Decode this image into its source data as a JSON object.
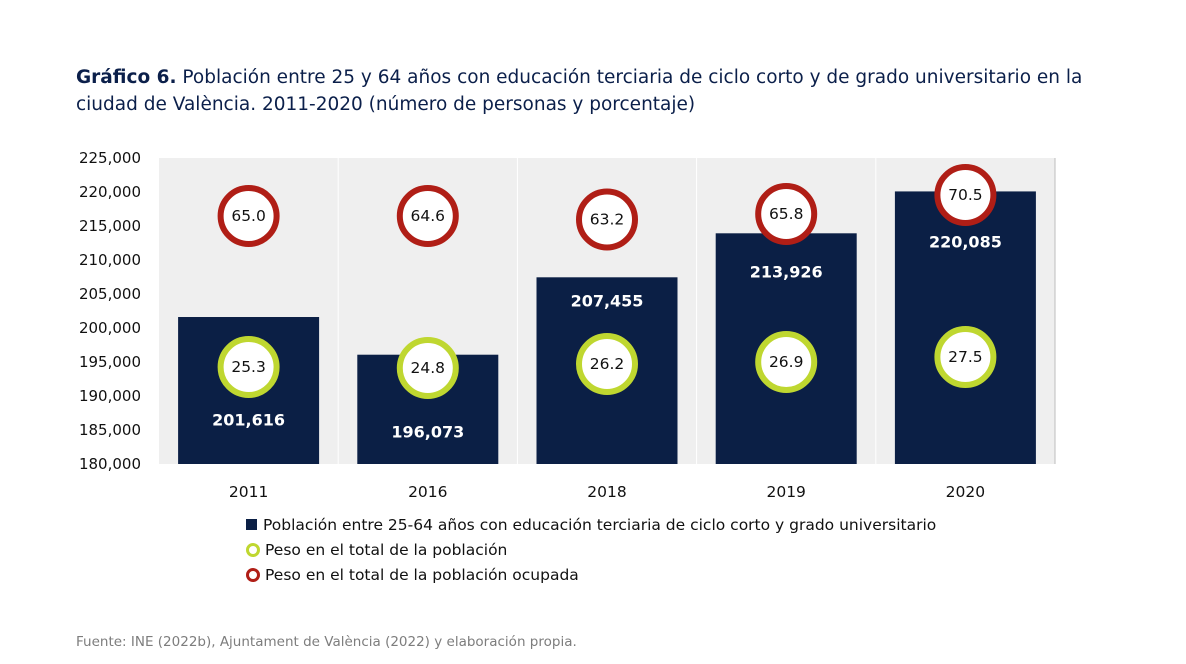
{
  "title": {
    "lead": "Gráfico 6.",
    "text": " Población entre 25 y 64 años con educación terciaria de ciclo corto y de grado universitario en la ciudad de València. 2011-2020 (número de personas y porcentaje)"
  },
  "source": "Fuente: INE (2022b), Ajuntament de València (2022) y elaboración propia.",
  "colors": {
    "bar": "#0b1f45",
    "green_ring": "#bfd730",
    "red_ring": "#b01e16",
    "plot_bg": "#efefef"
  },
  "chart_data": {
    "type": "bar",
    "categories": [
      "2011",
      "2016",
      "2018",
      "2019",
      "2020"
    ],
    "ylim": [
      180000,
      225000
    ],
    "yticks": [
      "180,000",
      "185,000",
      "190,000",
      "195,000",
      "200,000",
      "205,000",
      "210,000",
      "215,000",
      "220,000",
      "225,000"
    ],
    "series": [
      {
        "name": "Población entre 25-64 años con educación terciaria de ciclo corto y grado universitario",
        "values": [
          201616,
          196073,
          207455,
          213926,
          220085
        ],
        "labels": [
          "201,616",
          "196,073",
          "207,455",
          "213,926",
          "220,085"
        ]
      },
      {
        "name": "Peso en el total de la población",
        "values": [
          25.3,
          24.8,
          26.2,
          26.9,
          27.5
        ],
        "labels": [
          "25.3",
          "24.8",
          "26.2",
          "26.9",
          "27.5"
        ]
      },
      {
        "name": "Peso en el total de la población ocupada",
        "values": [
          65.0,
          64.6,
          63.2,
          65.8,
          70.5
        ],
        "labels": [
          "65.0",
          "64.6",
          "63.2",
          "65.8",
          "70.5"
        ]
      }
    ],
    "legend_position": "bottom",
    "grid": true
  }
}
